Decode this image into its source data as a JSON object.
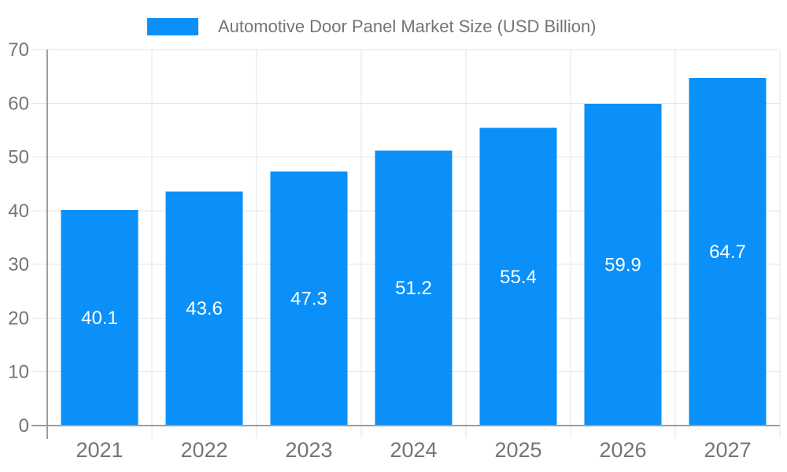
{
  "chart_data": {
    "type": "bar",
    "title": "Automotive Door Panel Market Size (USD Billion)",
    "categories": [
      "2021",
      "2022",
      "2023",
      "2024",
      "2025",
      "2026",
      "2027"
    ],
    "series": [
      {
        "name": "Automotive Door Panel Market Size (USD Billion)",
        "values": [
          40.1,
          43.6,
          47.3,
          51.2,
          55.4,
          59.9,
          64.7
        ]
      }
    ],
    "xlabel": "",
    "ylabel": "",
    "ylim": [
      0,
      70
    ],
    "ytick_step": 10,
    "grid": true,
    "legend_position": "top-center",
    "value_labels": "inside-middle",
    "value_decimals": 1,
    "colors": {
      "bar": "#0a90f8",
      "grid": "#e6e6e6",
      "axis": "#9e9e9e",
      "tick_text": "#757575",
      "value_text": "#ffffff",
      "background": "#ffffff"
    }
  }
}
